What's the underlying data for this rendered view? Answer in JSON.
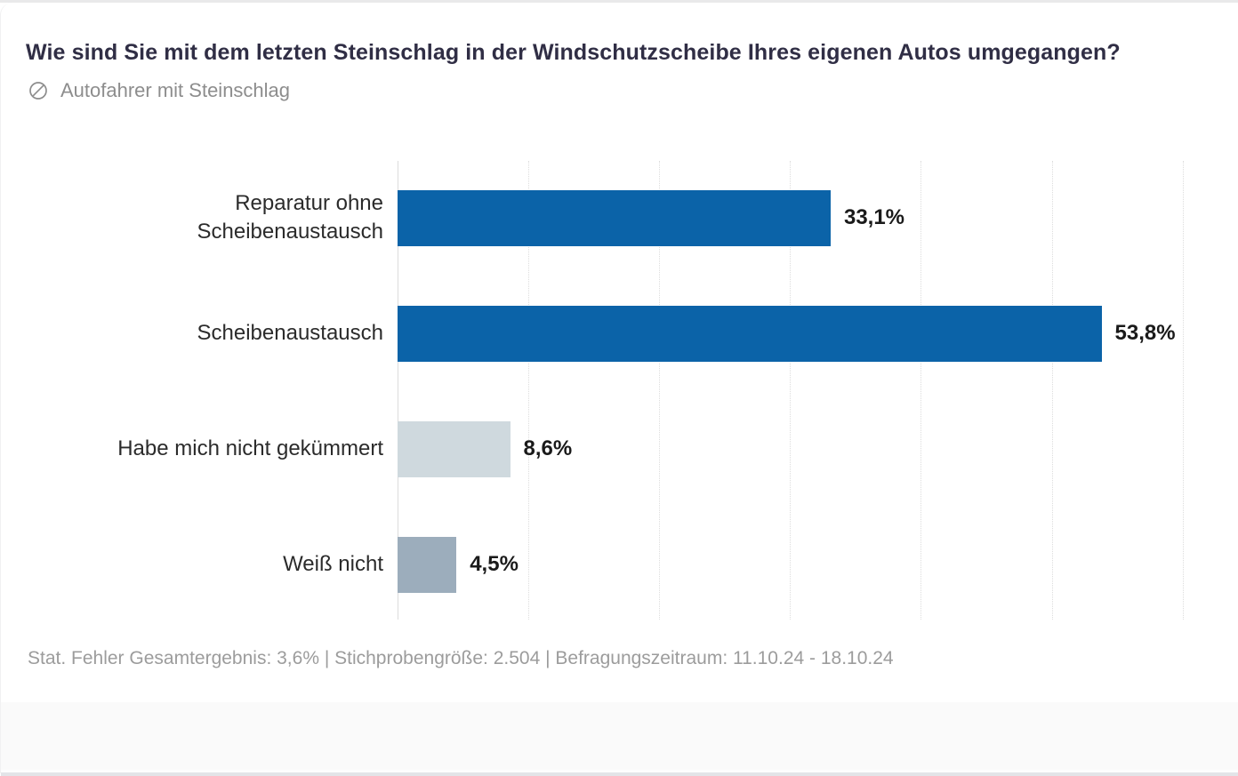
{
  "header": {
    "title": "Wie sind Sie mit dem letzten Steinschlag in der Windschutzscheibe Ihres eigenen Autos umgegangen?",
    "audience": "Autofahrer mit Steinschlag",
    "audience_icon": "slashed-circle-icon"
  },
  "chart_data": {
    "type": "bar",
    "orientation": "horizontal",
    "title": "Wie sind Sie mit dem letzten Steinschlag in der Windschutzscheibe Ihres eigenen Autos umgegangen?",
    "categories": [
      "Reparatur ohne Scheibenaustausch",
      "Scheibenaustausch",
      "Habe mich nicht gekümmert",
      "Weiß nicht"
    ],
    "category_label_lines": [
      [
        "Reparatur ohne",
        "Scheibenaustausch"
      ],
      [
        "Scheibenaustausch"
      ],
      [
        "Habe mich nicht gekümmert"
      ],
      [
        "Weiß nicht"
      ]
    ],
    "values": [
      33.1,
      53.8,
      8.6,
      4.5
    ],
    "value_labels": [
      "33,1%",
      "53,8%",
      "8,6%",
      "4,5%"
    ],
    "bar_colors": [
      "#0b63a8",
      "#0b63a8",
      "#cfd9de",
      "#9cadbc"
    ],
    "unit": "%",
    "xlim": [
      0,
      64.3
    ],
    "grid_step": 10,
    "grid": true,
    "legend": false
  },
  "footer": {
    "note": "Stat. Fehler Gesamtergebnis: 3,6% | Stichprobengröße: 2.504 | Befragungszeitraum: 11.10.24 - 18.10.24"
  },
  "colors": {
    "primary_blue": "#0b63a8",
    "light_gray_blue": "#cfd9de",
    "medium_gray_blue": "#9cadbc",
    "title_navy": "#302e45",
    "muted_gray": "#9c9c9c",
    "gridline": "#dddddd"
  }
}
